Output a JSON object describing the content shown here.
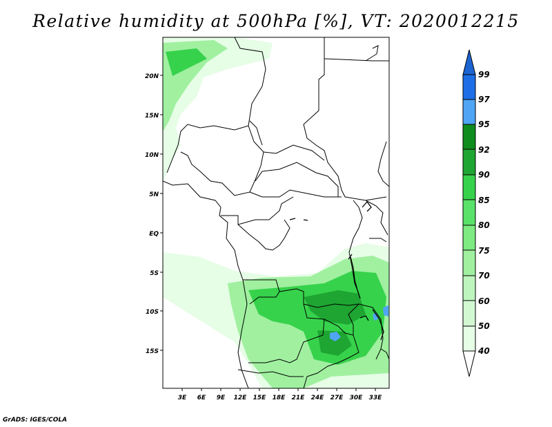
{
  "title": "Relative humidity at 500hPa [%], VT: 2020012215",
  "credit": "GrADS: IGES/COLA",
  "lat_labels": [
    "20N",
    "15N",
    "10N",
    "5N",
    "EQ",
    "5S",
    "10S",
    "15S"
  ],
  "lon_labels": [
    "3E",
    "6E",
    "9E",
    "12E",
    "15E",
    "18E",
    "21E",
    "24E",
    "27E",
    "30E",
    "33E"
  ],
  "colorbar": {
    "levels": [
      "99",
      "97",
      "95",
      "92",
      "90",
      "85",
      "80",
      "75",
      "70",
      "60",
      "50",
      "40"
    ],
    "colors": [
      "#1c64d2",
      "#1e6ee6",
      "#50a5f5",
      "#0f8c1e",
      "#1ea532",
      "#37d24b",
      "#5ae169",
      "#7deb82",
      "#a0f0a0",
      "#bef5be",
      "#d2f8d2",
      "#e6fde6"
    ]
  },
  "map_colors": {
    "light": "#e6fde6",
    "mid": "#a0f0a0",
    "strong": "#37d24b",
    "dark": "#1ea532",
    "blue": "#50a5f5"
  }
}
